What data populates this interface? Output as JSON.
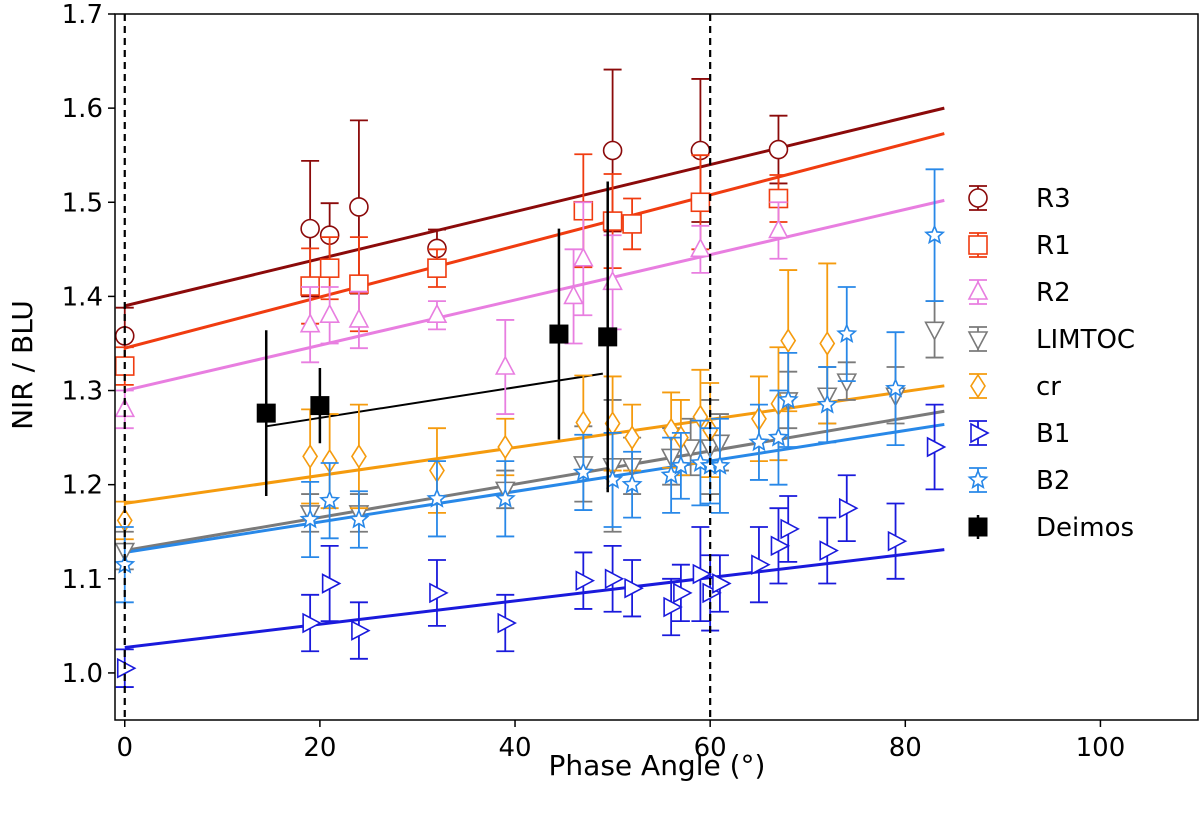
{
  "chart_data": {
    "type": "scatter",
    "xlabel": "Phase Angle (°)",
    "ylabel": "NIR / BLU",
    "xlim": [
      -1,
      110
    ],
    "ylim": [
      0.95,
      1.7
    ],
    "xticks": [
      0,
      20,
      40,
      60,
      80,
      100
    ],
    "yticks": [
      1.0,
      1.1,
      1.2,
      1.3,
      1.4,
      1.5,
      1.6,
      1.7
    ],
    "grid": false,
    "legend_position": "center-right",
    "vlines": [
      0,
      60
    ],
    "series": [
      {
        "name": "R3",
        "marker": "circle",
        "color": "#8b0a0a",
        "fit": {
          "x": [
            0,
            84
          ],
          "y": [
            1.39,
            1.6
          ]
        },
        "points": [
          {
            "x": 0,
            "y": 1.358,
            "err": 0.03
          },
          {
            "x": 19,
            "y": 1.472,
            "err": 0.072
          },
          {
            "x": 21,
            "y": 1.465,
            "err": 0.034
          },
          {
            "x": 24,
            "y": 1.495,
            "err": 0.092
          },
          {
            "x": 32,
            "y": 1.451,
            "err": 0.02
          },
          {
            "x": 50,
            "y": 1.555,
            "err": 0.086
          },
          {
            "x": 59,
            "y": 1.555,
            "err": 0.076
          },
          {
            "x": 67,
            "y": 1.556,
            "err": 0.036
          }
        ]
      },
      {
        "name": "R1",
        "marker": "square",
        "color": "#f03c10",
        "fit": {
          "x": [
            0,
            84
          ],
          "y": [
            1.345,
            1.573
          ]
        },
        "points": [
          {
            "x": 0,
            "y": 1.326,
            "err": 0.02
          },
          {
            "x": 19,
            "y": 1.411,
            "err": 0.04
          },
          {
            "x": 21,
            "y": 1.43,
            "err": 0.033
          },
          {
            "x": 24,
            "y": 1.413,
            "err": 0.05
          },
          {
            "x": 32,
            "y": 1.43,
            "err": 0.02
          },
          {
            "x": 47,
            "y": 1.491,
            "err": 0.06
          },
          {
            "x": 50,
            "y": 1.48,
            "err": 0.05
          },
          {
            "x": 52,
            "y": 1.477,
            "err": 0.027
          },
          {
            "x": 59,
            "y": 1.5,
            "err": 0.05
          },
          {
            "x": 67,
            "y": 1.504,
            "err": 0.025
          }
        ]
      },
      {
        "name": "R2",
        "marker": "triangle-up",
        "color": "#e87ee0",
        "fit": {
          "x": [
            0,
            84
          ],
          "y": [
            1.3,
            1.502
          ]
        },
        "points": [
          {
            "x": 0,
            "y": 1.28,
            "err": 0.02
          },
          {
            "x": 19,
            "y": 1.37,
            "err": 0.04
          },
          {
            "x": 21,
            "y": 1.38,
            "err": 0.03
          },
          {
            "x": 24,
            "y": 1.375,
            "err": 0.03
          },
          {
            "x": 32,
            "y": 1.38,
            "err": 0.015
          },
          {
            "x": 39,
            "y": 1.325,
            "err": 0.05
          },
          {
            "x": 46,
            "y": 1.4,
            "err": 0.05
          },
          {
            "x": 47,
            "y": 1.44,
            "err": 0.06
          },
          {
            "x": 50,
            "y": 1.415,
            "err": 0.05
          },
          {
            "x": 59,
            "y": 1.45,
            "err": 0.025
          },
          {
            "x": 67,
            "y": 1.47,
            "err": 0.03
          }
        ]
      },
      {
        "name": "LIMTOC",
        "marker": "triangle-down",
        "color": "#7a7a7a",
        "fit": {
          "x": [
            0,
            84
          ],
          "y": [
            1.13,
            1.278
          ]
        },
        "points": [
          {
            "x": 0,
            "y": 1.13,
            "err": 0.02
          },
          {
            "x": 19,
            "y": 1.17,
            "err": 0.02
          },
          {
            "x": 24,
            "y": 1.17,
            "err": 0.02
          },
          {
            "x": 39,
            "y": 1.195,
            "err": 0.02
          },
          {
            "x": 47,
            "y": 1.222,
            "err": 0.04
          },
          {
            "x": 50,
            "y": 1.22,
            "err": 0.07
          },
          {
            "x": 52,
            "y": 1.22,
            "err": 0.03
          },
          {
            "x": 56,
            "y": 1.23,
            "err": 0.03
          },
          {
            "x": 58,
            "y": 1.24,
            "err": 0.03
          },
          {
            "x": 60,
            "y": 1.24,
            "err": 0.05
          },
          {
            "x": 61,
            "y": 1.245,
            "err": 0.03
          },
          {
            "x": 68,
            "y": 1.29,
            "err": 0.03
          },
          {
            "x": 72,
            "y": 1.295,
            "err": 0.03
          },
          {
            "x": 74,
            "y": 1.31,
            "err": 0.02
          },
          {
            "x": 79,
            "y": 1.295,
            "err": 0.03
          },
          {
            "x": 83,
            "y": 1.365,
            "err": 0.03
          }
        ]
      },
      {
        "name": "cr",
        "marker": "diamond",
        "color": "#f59b0e",
        "fit": {
          "x": [
            0,
            84
          ],
          "y": [
            1.18,
            1.305
          ]
        },
        "points": [
          {
            "x": 0,
            "y": 1.162,
            "err": 0.02
          },
          {
            "x": 19,
            "y": 1.23,
            "err": 0.05
          },
          {
            "x": 21,
            "y": 1.225,
            "err": 0.05
          },
          {
            "x": 24,
            "y": 1.23,
            "err": 0.055
          },
          {
            "x": 32,
            "y": 1.215,
            "err": 0.045
          },
          {
            "x": 39,
            "y": 1.24,
            "err": 0.03
          },
          {
            "x": 47,
            "y": 1.266,
            "err": 0.05
          },
          {
            "x": 50,
            "y": 1.265,
            "err": 0.05
          },
          {
            "x": 52,
            "y": 1.25,
            "err": 0.035
          },
          {
            "x": 56,
            "y": 1.258,
            "err": 0.04
          },
          {
            "x": 57,
            "y": 1.25,
            "err": 0.04
          },
          {
            "x": 59,
            "y": 1.272,
            "err": 0.05
          },
          {
            "x": 60,
            "y": 1.258,
            "err": 0.05
          },
          {
            "x": 65,
            "y": 1.27,
            "err": 0.045
          },
          {
            "x": 67,
            "y": 1.286,
            "err": 0.06
          },
          {
            "x": 68,
            "y": 1.353,
            "err": 0.075
          },
          {
            "x": 72,
            "y": 1.35,
            "err": 0.085
          }
        ]
      },
      {
        "name": "B1",
        "marker": "triangle-right",
        "color": "#1a1adc",
        "fit": {
          "x": [
            0,
            84
          ],
          "y": [
            1.027,
            1.131
          ]
        },
        "points": [
          {
            "x": 0,
            "y": 1.005,
            "err": 0.02
          },
          {
            "x": 19,
            "y": 1.053,
            "err": 0.03
          },
          {
            "x": 21,
            "y": 1.095,
            "err": 0.04
          },
          {
            "x": 24,
            "y": 1.045,
            "err": 0.03
          },
          {
            "x": 32,
            "y": 1.085,
            "err": 0.035
          },
          {
            "x": 39,
            "y": 1.053,
            "err": 0.03
          },
          {
            "x": 47,
            "y": 1.098,
            "err": 0.03
          },
          {
            "x": 50,
            "y": 1.1,
            "err": 0.035
          },
          {
            "x": 52,
            "y": 1.09,
            "err": 0.03
          },
          {
            "x": 56,
            "y": 1.07,
            "err": 0.03
          },
          {
            "x": 57,
            "y": 1.085,
            "err": 0.03
          },
          {
            "x": 59,
            "y": 1.105,
            "err": 0.05
          },
          {
            "x": 60,
            "y": 1.085,
            "err": 0.04
          },
          {
            "x": 61,
            "y": 1.095,
            "err": 0.03
          },
          {
            "x": 65,
            "y": 1.115,
            "err": 0.04
          },
          {
            "x": 67,
            "y": 1.135,
            "err": 0.04
          },
          {
            "x": 68,
            "y": 1.153,
            "err": 0.035
          },
          {
            "x": 72,
            "y": 1.13,
            "err": 0.035
          },
          {
            "x": 74,
            "y": 1.175,
            "err": 0.035
          },
          {
            "x": 79,
            "y": 1.14,
            "err": 0.04
          },
          {
            "x": 83,
            "y": 1.24,
            "err": 0.045
          }
        ]
      },
      {
        "name": "B2",
        "marker": "star",
        "color": "#2888e8",
        "fit": {
          "x": [
            0,
            84
          ],
          "y": [
            1.128,
            1.264
          ]
        },
        "points": [
          {
            "x": 0,
            "y": 1.115,
            "err": 0.04
          },
          {
            "x": 19,
            "y": 1.163,
            "err": 0.04
          },
          {
            "x": 21,
            "y": 1.183,
            "err": 0.04
          },
          {
            "x": 24,
            "y": 1.163,
            "err": 0.03
          },
          {
            "x": 32,
            "y": 1.185,
            "err": 0.04
          },
          {
            "x": 39,
            "y": 1.185,
            "err": 0.04
          },
          {
            "x": 47,
            "y": 1.213,
            "err": 0.04
          },
          {
            "x": 50,
            "y": 1.205,
            "err": 0.05
          },
          {
            "x": 52,
            "y": 1.2,
            "err": 0.035
          },
          {
            "x": 56,
            "y": 1.21,
            "err": 0.04
          },
          {
            "x": 57,
            "y": 1.22,
            "err": 0.035
          },
          {
            "x": 59,
            "y": 1.223,
            "err": 0.045
          },
          {
            "x": 60,
            "y": 1.22,
            "err": 0.04
          },
          {
            "x": 61,
            "y": 1.22,
            "err": 0.05
          },
          {
            "x": 65,
            "y": 1.245,
            "err": 0.04
          },
          {
            "x": 67,
            "y": 1.25,
            "err": 0.05
          },
          {
            "x": 68,
            "y": 1.29,
            "err": 0.05
          },
          {
            "x": 72,
            "y": 1.285,
            "err": 0.04
          },
          {
            "x": 74,
            "y": 1.36,
            "err": 0.05
          },
          {
            "x": 79,
            "y": 1.302,
            "err": 0.06
          },
          {
            "x": 83,
            "y": 1.465,
            "err": 0.07
          }
        ]
      },
      {
        "name": "Deimos",
        "marker": "filled-square",
        "color": "#000000",
        "fit": {
          "x": [
            14.5,
            49
          ],
          "y": [
            1.262,
            1.318
          ]
        },
        "points": [
          {
            "x": 14.5,
            "y": 1.276,
            "err": 0.088
          },
          {
            "x": 20,
            "y": 1.284,
            "err": 0.04
          },
          {
            "x": 44.5,
            "y": 1.36,
            "err": 0.112
          },
          {
            "x": 49.5,
            "y": 1.357,
            "err": 0.165
          }
        ]
      }
    ]
  }
}
